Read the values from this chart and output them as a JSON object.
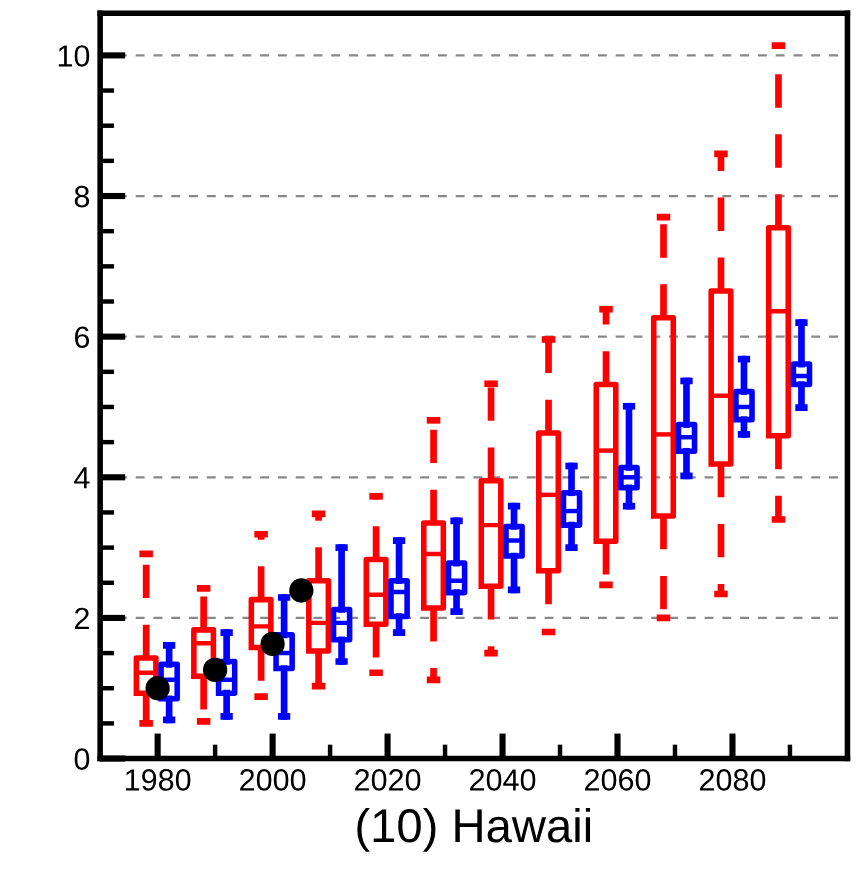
{
  "chart_data": {
    "type": "box",
    "xlabel": "(10) Hawaii",
    "xlim": [
      1970,
      2100
    ],
    "ylim": [
      0,
      10.6
    ],
    "xticks": [
      1980,
      {
        "value": 1990,
        "label": null
      },
      2000,
      {
        "value": 2010,
        "label": null
      },
      2020,
      {
        "value": 2030,
        "label": null
      },
      2040,
      {
        "value": 2050,
        "label": null
      },
      2060,
      {
        "value": 2070,
        "label": null
      },
      2080,
      {
        "value": 2090,
        "label": null
      }
    ],
    "yticks": [
      0,
      {
        "value": 0.5,
        "label": null
      },
      {
        "value": 1,
        "label": null
      },
      {
        "value": 1.5,
        "label": null
      },
      2,
      {
        "value": 2.5,
        "label": null
      },
      {
        "value": 3,
        "label": null
      },
      {
        "value": 3.5,
        "label": null
      },
      4,
      {
        "value": 4.5,
        "label": null
      },
      {
        "value": 5,
        "label": null
      },
      {
        "value": 5.5,
        "label": null
      },
      6,
      {
        "value": 6.5,
        "label": null
      },
      {
        "value": 7,
        "label": null
      },
      {
        "value": 7.5,
        "label": null
      },
      8,
      {
        "value": 8.5,
        "label": null
      },
      {
        "value": 9,
        "label": null
      },
      {
        "value": 9.5,
        "label": null
      },
      10
    ],
    "grid": "y",
    "legend": false,
    "series": [
      {
        "type": "box",
        "color": "#ff0000",
        "line_style": "dashed",
        "x": [
          1978,
          1988,
          1998,
          2008,
          2018,
          2028,
          2038,
          2048,
          2058,
          2068,
          2078,
          2088
        ],
        "boxes": [
          {
            "low": 0.5,
            "q1": 0.93,
            "median": 1.22,
            "q3": 1.43,
            "high": 2.91
          },
          {
            "low": 0.53,
            "q1": 1.17,
            "median": 1.64,
            "q3": 1.83,
            "high": 2.42
          },
          {
            "low": 0.88,
            "q1": 1.58,
            "median": 1.88,
            "q3": 2.26,
            "high": 3.19
          },
          {
            "low": 1.03,
            "q1": 1.53,
            "median": 1.93,
            "q3": 2.53,
            "high": 3.48
          },
          {
            "low": 1.22,
            "q1": 1.91,
            "median": 2.33,
            "q3": 2.83,
            "high": 3.73
          },
          {
            "low": 1.12,
            "q1": 2.14,
            "median": 2.91,
            "q3": 3.35,
            "high": 4.81
          },
          {
            "low": 1.5,
            "q1": 2.45,
            "median": 3.32,
            "q3": 3.95,
            "high": 5.33
          },
          {
            "low": 1.8,
            "q1": 2.67,
            "median": 3.75,
            "q3": 4.63,
            "high": 5.96
          },
          {
            "low": 2.47,
            "q1": 3.09,
            "median": 4.38,
            "q3": 5.32,
            "high": 6.39
          },
          {
            "low": 2.0,
            "q1": 3.45,
            "median": 4.61,
            "q3": 6.27,
            "high": 7.7
          },
          {
            "low": 2.34,
            "q1": 4.19,
            "median": 5.16,
            "q3": 6.65,
            "high": 8.6
          },
          {
            "low": 3.4,
            "q1": 4.59,
            "median": 6.36,
            "q3": 7.55,
            "high": 10.14
          }
        ]
      },
      {
        "type": "box",
        "color": "#0000ff",
        "line_style": "solid",
        "x": [
          1982,
          1992,
          2002,
          2012,
          2022,
          2032,
          2042,
          2052,
          2062,
          2072,
          2082,
          2092
        ],
        "boxes": [
          {
            "low": 0.55,
            "q1": 0.85,
            "median": 1.12,
            "q3": 1.34,
            "high": 1.61
          },
          {
            "low": 0.6,
            "q1": 0.93,
            "median": 1.12,
            "q3": 1.38,
            "high": 1.79
          },
          {
            "low": 0.6,
            "q1": 1.28,
            "median": 1.5,
            "q3": 1.76,
            "high": 2.29
          },
          {
            "low": 1.38,
            "q1": 1.69,
            "median": 1.93,
            "q3": 2.12,
            "high": 3.0
          },
          {
            "low": 1.79,
            "q1": 2.02,
            "median": 2.37,
            "q3": 2.53,
            "high": 3.1
          },
          {
            "low": 2.09,
            "q1": 2.36,
            "median": 2.53,
            "q3": 2.78,
            "high": 3.38
          },
          {
            "low": 2.4,
            "q1": 2.88,
            "median": 3.1,
            "q3": 3.3,
            "high": 3.59
          },
          {
            "low": 3.0,
            "q1": 3.32,
            "median": 3.52,
            "q3": 3.78,
            "high": 4.16
          },
          {
            "low": 3.59,
            "q1": 3.85,
            "median": 4.0,
            "q3": 4.14,
            "high": 5.01
          },
          {
            "low": 4.02,
            "q1": 4.37,
            "median": 4.57,
            "q3": 4.75,
            "high": 5.37
          },
          {
            "low": 4.61,
            "q1": 4.82,
            "median": 5.0,
            "q3": 5.22,
            "high": 5.68
          },
          {
            "low": 4.99,
            "q1": 5.32,
            "median": 5.44,
            "q3": 5.61,
            "high": 6.2
          }
        ]
      },
      {
        "type": "scatter",
        "color": "#000000",
        "marker": "circle",
        "x": [
          1980,
          1990,
          2000,
          2005
        ],
        "values": [
          1.0,
          1.26,
          1.63,
          2.39
        ]
      }
    ]
  }
}
